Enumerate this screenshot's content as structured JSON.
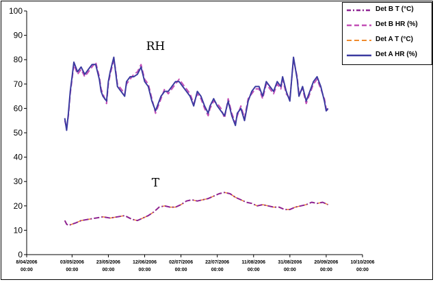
{
  "chart_data": {
    "type": "line",
    "title": "",
    "xlabel": "",
    "ylabel": "",
    "ylim": [
      0,
      100
    ],
    "y_ticks": [
      "0",
      "10",
      "20",
      "30",
      "40",
      "50",
      "60",
      "70",
      "80",
      "90",
      "100"
    ],
    "x_ticks": [
      {
        "date": "2006-04-08",
        "line1": "8/04/2006",
        "line2": "00:00"
      },
      {
        "date": "2006-05-03",
        "line1": "03/05/2006",
        "line2": "00:00"
      },
      {
        "date": "2006-05-23",
        "line1": "23/05/2006",
        "line2": "00:00"
      },
      {
        "date": "2006-06-12",
        "line1": "12/06/2006",
        "line2": "00:00"
      },
      {
        "date": "2006-07-02",
        "line1": "02/07/2006",
        "line2": "00:00"
      },
      {
        "date": "2006-07-22",
        "line1": "22/07/2006",
        "line2": "00:00"
      },
      {
        "date": "2006-08-11",
        "line1": "11/08/2006",
        "line2": "00:00"
      },
      {
        "date": "2006-08-31",
        "line1": "31/08/2006",
        "line2": "00:00"
      },
      {
        "date": "2006-09-20",
        "line1": "20/09/2006",
        "line2": "00:00"
      },
      {
        "date": "2006-10-10",
        "line1": "10/10/2006",
        "line2": "00:00"
      }
    ],
    "annotations": [
      {
        "text": "RH",
        "x": "2006-06-18",
        "y": 84
      },
      {
        "text": "T",
        "x": "2006-06-18",
        "y": 28
      }
    ],
    "legend_position": "top-right",
    "series": [
      {
        "name": "Det B T (°C)",
        "color": "#8e2392",
        "style": "dashdot",
        "x": [
          "2006-04-29",
          "2006-04-30",
          "2006-05-01",
          "2006-05-03",
          "2006-05-05",
          "2006-05-08",
          "2006-05-12",
          "2006-05-16",
          "2006-05-20",
          "2006-05-24",
          "2006-05-28",
          "2006-06-01",
          "2006-06-05",
          "2006-06-08",
          "2006-06-11",
          "2006-06-14",
          "2006-06-17",
          "2006-06-20",
          "2006-06-23",
          "2006-06-26",
          "2006-06-29",
          "2006-07-02",
          "2006-07-05",
          "2006-07-08",
          "2006-07-11",
          "2006-07-14",
          "2006-07-17",
          "2006-07-20",
          "2006-07-23",
          "2006-07-26",
          "2006-07-29",
          "2006-08-01",
          "2006-08-04",
          "2006-08-07",
          "2006-08-10",
          "2006-08-13",
          "2006-08-16",
          "2006-08-19",
          "2006-08-22",
          "2006-08-25",
          "2006-08-28",
          "2006-08-31",
          "2006-09-03",
          "2006-09-06",
          "2006-09-09",
          "2006-09-12",
          "2006-09-15",
          "2006-09-18",
          "2006-09-21"
        ],
        "values": [
          14,
          12.5,
          12,
          12.5,
          13,
          14,
          14.5,
          15,
          15.5,
          15,
          15.5,
          16,
          14.5,
          14,
          15,
          16,
          17.5,
          19.5,
          20,
          19.5,
          19.5,
          20.5,
          22,
          22.5,
          22,
          22.5,
          23,
          24,
          25,
          25.5,
          25,
          23.5,
          22.5,
          21.5,
          21,
          20,
          20.5,
          20,
          19.5,
          19.5,
          18.5,
          18.5,
          19.5,
          20,
          20.5,
          21.5,
          21,
          21.5,
          20.5
        ]
      },
      {
        "name": "Det B HR (%)",
        "color": "#c24fb6",
        "style": "dashed",
        "x": [
          "2006-04-29",
          "2006-04-30",
          "2006-05-01",
          "2006-05-02",
          "2006-05-03",
          "2006-05-04",
          "2006-05-05",
          "2006-05-06",
          "2006-05-08",
          "2006-05-10",
          "2006-05-12",
          "2006-05-14",
          "2006-05-16",
          "2006-05-18",
          "2006-05-19",
          "2006-05-20",
          "2006-05-22",
          "2006-05-23",
          "2006-05-24",
          "2006-05-26",
          "2006-05-27",
          "2006-05-28",
          "2006-05-30",
          "2006-06-01",
          "2006-06-02",
          "2006-06-04",
          "2006-06-06",
          "2006-06-08",
          "2006-06-10",
          "2006-06-12",
          "2006-06-14",
          "2006-06-16",
          "2006-06-18",
          "2006-06-20",
          "2006-06-21",
          "2006-06-23",
          "2006-06-25",
          "2006-06-27",
          "2006-06-29",
          "2006-07-01",
          "2006-07-03",
          "2006-07-05",
          "2006-07-07",
          "2006-07-09",
          "2006-07-11",
          "2006-07-13",
          "2006-07-15",
          "2006-07-17",
          "2006-07-18",
          "2006-07-20",
          "2006-07-22",
          "2006-07-24",
          "2006-07-26",
          "2006-07-28",
          "2006-07-30",
          "2006-08-01",
          "2006-08-02",
          "2006-08-04",
          "2006-08-06",
          "2006-08-08",
          "2006-08-10",
          "2006-08-12",
          "2006-08-14",
          "2006-08-16",
          "2006-08-18",
          "2006-08-20",
          "2006-08-22",
          "2006-08-24",
          "2006-08-26",
          "2006-08-27",
          "2006-08-29",
          "2006-08-31",
          "2006-09-02",
          "2006-09-04",
          "2006-09-05",
          "2006-09-07",
          "2006-09-09",
          "2006-09-11",
          "2006-09-13",
          "2006-09-15",
          "2006-09-17",
          "2006-09-19",
          "2006-09-20",
          "2006-09-21"
        ],
        "values": [
          55,
          52,
          57,
          66,
          72,
          78,
          76,
          74,
          76,
          73,
          75,
          77,
          79,
          73,
          68,
          66,
          62,
          70,
          74,
          80,
          76,
          70,
          68,
          66,
          70,
          72,
          74,
          75,
          78,
          72,
          70,
          64,
          58,
          62,
          64,
          68,
          66,
          68,
          70,
          72,
          70,
          68,
          66,
          62,
          66,
          64,
          60,
          57,
          60,
          63,
          62,
          60,
          56,
          64,
          58,
          54,
          57,
          61,
          56,
          64,
          66,
          68,
          68,
          64,
          70,
          68,
          66,
          70,
          68,
          72,
          66,
          64,
          80,
          73,
          66,
          68,
          62,
          66,
          70,
          72,
          68,
          64,
          60,
          59
        ]
      },
      {
        "name": "Det A T (°C)",
        "color": "#f08a2c",
        "style": "dashed",
        "x": [
          "2006-04-29",
          "2006-04-30",
          "2006-05-01",
          "2006-05-03",
          "2006-05-05",
          "2006-05-08",
          "2006-05-12",
          "2006-05-16",
          "2006-05-20",
          "2006-05-24",
          "2006-05-28",
          "2006-06-01",
          "2006-06-05",
          "2006-06-08",
          "2006-06-11",
          "2006-06-14",
          "2006-06-17",
          "2006-06-20",
          "2006-06-23",
          "2006-06-26",
          "2006-06-29",
          "2006-07-02",
          "2006-07-05",
          "2006-07-08",
          "2006-07-11",
          "2006-07-14",
          "2006-07-17",
          "2006-07-20",
          "2006-07-23",
          "2006-07-26",
          "2006-07-29",
          "2006-08-01",
          "2006-08-04",
          "2006-08-07",
          "2006-08-10",
          "2006-08-13",
          "2006-08-16",
          "2006-08-19",
          "2006-08-22",
          "2006-08-25",
          "2006-08-28",
          "2006-08-31",
          "2006-09-03",
          "2006-09-06",
          "2006-09-09",
          "2006-09-12",
          "2006-09-15",
          "2006-09-18",
          "2006-09-21"
        ],
        "values": [
          14,
          12.5,
          12,
          12.5,
          13,
          14,
          14.5,
          15,
          15.5,
          15,
          15.5,
          16,
          14.5,
          14,
          15,
          16,
          17.5,
          19.5,
          20,
          19.5,
          19.5,
          20.5,
          22,
          22.5,
          22,
          22.5,
          23,
          24,
          25,
          25.5,
          25,
          23.5,
          22.5,
          21.5,
          21,
          20,
          20.5,
          20,
          19.5,
          19.5,
          18.5,
          18.5,
          19.5,
          20,
          20.5,
          21.5,
          21,
          21.5,
          20.5
        ]
      },
      {
        "name": "Det A HR (%)",
        "color": "#3b3aa0",
        "style": "solid",
        "x": [
          "2006-04-29",
          "2006-04-30",
          "2006-05-01",
          "2006-05-02",
          "2006-05-03",
          "2006-05-04",
          "2006-05-05",
          "2006-05-06",
          "2006-05-08",
          "2006-05-10",
          "2006-05-12",
          "2006-05-14",
          "2006-05-16",
          "2006-05-18",
          "2006-05-19",
          "2006-05-20",
          "2006-05-22",
          "2006-05-23",
          "2006-05-24",
          "2006-05-26",
          "2006-05-27",
          "2006-05-28",
          "2006-05-30",
          "2006-06-01",
          "2006-06-02",
          "2006-06-04",
          "2006-06-06",
          "2006-06-08",
          "2006-06-10",
          "2006-06-12",
          "2006-06-14",
          "2006-06-16",
          "2006-06-18",
          "2006-06-20",
          "2006-06-21",
          "2006-06-23",
          "2006-06-25",
          "2006-06-27",
          "2006-06-29",
          "2006-07-01",
          "2006-07-03",
          "2006-07-05",
          "2006-07-07",
          "2006-07-09",
          "2006-07-11",
          "2006-07-13",
          "2006-07-15",
          "2006-07-17",
          "2006-07-18",
          "2006-07-20",
          "2006-07-22",
          "2006-07-24",
          "2006-07-26",
          "2006-07-28",
          "2006-07-30",
          "2006-08-01",
          "2006-08-02",
          "2006-08-04",
          "2006-08-06",
          "2006-08-08",
          "2006-08-10",
          "2006-08-12",
          "2006-08-14",
          "2006-08-16",
          "2006-08-18",
          "2006-08-20",
          "2006-08-22",
          "2006-08-24",
          "2006-08-26",
          "2006-08-27",
          "2006-08-29",
          "2006-08-31",
          "2006-09-02",
          "2006-09-04",
          "2006-09-05",
          "2006-09-07",
          "2006-09-09",
          "2006-09-11",
          "2006-09-13",
          "2006-09-15",
          "2006-09-17",
          "2006-09-19",
          "2006-09-20",
          "2006-09-21"
        ],
        "values": [
          56,
          51,
          58,
          67,
          73,
          79,
          77,
          75,
          77,
          74,
          76,
          78,
          78,
          72,
          67,
          65,
          63,
          71,
          75,
          81,
          75,
          69,
          67,
          65,
          71,
          73,
          73,
          74,
          77,
          71,
          69,
          63,
          59,
          63,
          65,
          67,
          67,
          69,
          71,
          71,
          69,
          67,
          65,
          61,
          67,
          65,
          61,
          58,
          61,
          64,
          61,
          59,
          57,
          63,
          57,
          53,
          58,
          60,
          55,
          63,
          67,
          69,
          69,
          65,
          71,
          69,
          67,
          71,
          69,
          73,
          67,
          63,
          81,
          72,
          65,
          69,
          63,
          67,
          71,
          73,
          69,
          63,
          59,
          60
        ]
      }
    ]
  }
}
